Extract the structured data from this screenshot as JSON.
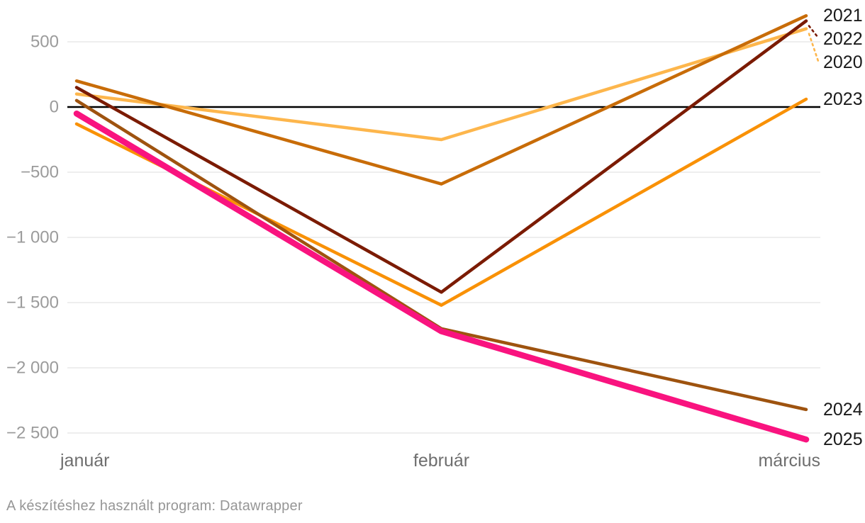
{
  "chart_data": {
    "type": "line",
    "title": "",
    "categories": [
      "január",
      "február",
      "március"
    ],
    "series": [
      {
        "name": "2020",
        "values": [
          100,
          -250,
          600
        ],
        "color": "#fdb64c",
        "line_width": 4.5
      },
      {
        "name": "2021",
        "values": [
          200,
          -590,
          700
        ],
        "color": "#c86c08",
        "line_width": 4.5
      },
      {
        "name": "2022",
        "values": [
          150,
          -1420,
          660
        ],
        "color": "#7b1b02",
        "line_width": 4.5
      },
      {
        "name": "2023",
        "values": [
          -130,
          -1520,
          60
        ],
        "color": "#f99106",
        "line_width": 4.5
      },
      {
        "name": "2024",
        "values": [
          50,
          -1700,
          -2320
        ],
        "color": "#9e530f",
        "line_width": 4.5
      },
      {
        "name": "2025",
        "values": [
          -50,
          -1720,
          -2550
        ],
        "color": "#f9137f",
        "line_width": 8.5
      }
    ],
    "y_ticks": [
      {
        "value": 500,
        "label": "500"
      },
      {
        "value": 0,
        "label": "0"
      },
      {
        "value": -500,
        "label": "−500"
      },
      {
        "value": -1000,
        "label": "−1 000"
      },
      {
        "value": -1500,
        "label": "−1 500"
      },
      {
        "value": -2000,
        "label": "−2 000"
      },
      {
        "value": -2500,
        "label": "−2 500"
      }
    ],
    "ylim": [
      -2680,
      820
    ],
    "grid": true,
    "legend_position": "right-end-labels",
    "grid_color": "#e9e9e9",
    "zero_line_color": "#000000",
    "tick_color": "#9b9b9b",
    "month_label_color": "#6e6e6e",
    "end_label_color": "#1a1a1a"
  },
  "footer": {
    "text": "A készítéshez használt program: Datawrapper"
  }
}
